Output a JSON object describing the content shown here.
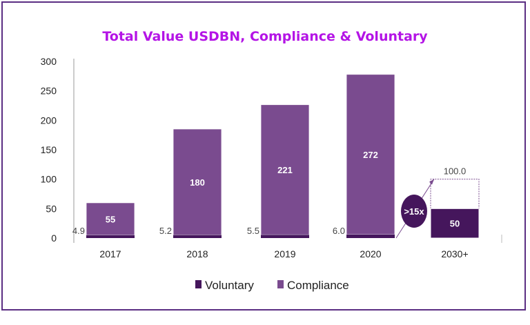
{
  "chart_data": {
    "type": "bar",
    "stacked": true,
    "title": "Total Value USDBN, Compliance & Voluntary",
    "categories": [
      "2017",
      "2018",
      "2019",
      "2020",
      "2030+"
    ],
    "series": [
      {
        "name": "Voluntary",
        "values": [
          4.9,
          5.2,
          5.5,
          6.0,
          50
        ],
        "color": "#45165c",
        "labels": [
          "4.9",
          "5.2",
          "5.5",
          "6.0",
          "50"
        ]
      },
      {
        "name": "Compliance",
        "values": [
          55,
          180,
          221,
          272,
          null
        ],
        "color": "#7a4b8f",
        "labels": [
          "55",
          "180",
          "221",
          "272",
          ""
        ]
      }
    ],
    "projection": {
      "category": "2030+",
      "total": 100,
      "total_label": "100.0",
      "badge": ">15x"
    },
    "yticks": [
      0,
      50,
      100,
      150,
      200,
      250,
      300
    ],
    "ylim": [
      0,
      300
    ],
    "grid": false,
    "legend_position": "bottom"
  }
}
